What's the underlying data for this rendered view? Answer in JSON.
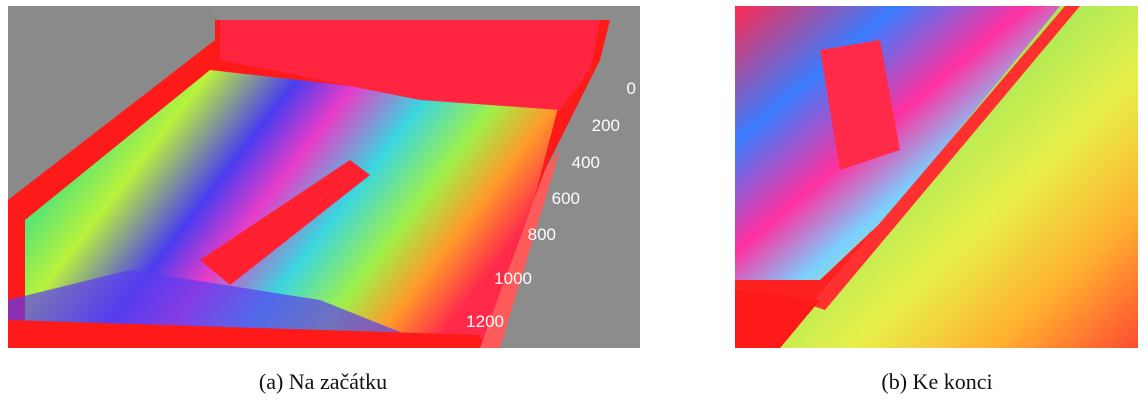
{
  "panels": [
    {
      "caption": "(a) Na začátku",
      "axis_labels": [
        0,
        200,
        400,
        600,
        800,
        1000,
        1200
      ]
    },
    {
      "caption": "(b) Ke konci"
    }
  ]
}
